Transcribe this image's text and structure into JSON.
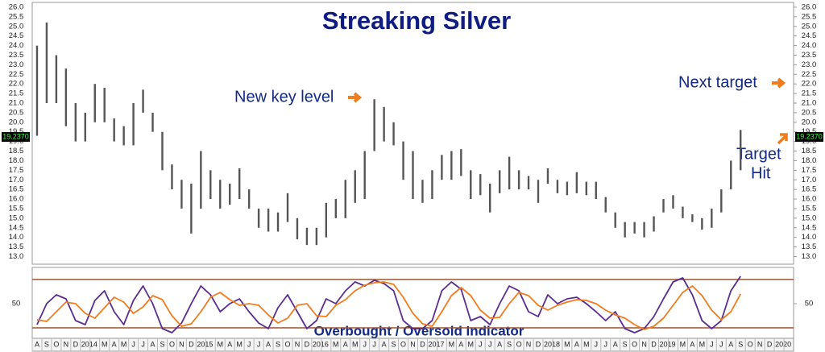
{
  "chart_data": [
    {
      "type": "ohlc",
      "title": "Streaking Silver",
      "color": "#555555",
      "annotations": [
        "New key level",
        "Next target",
        "Target",
        "Hit"
      ],
      "last_price": {
        "value": 19.237,
        "label": "19.2370"
      },
      "ylim": [
        12.6,
        26.25
      ],
      "yticks": [
        {
          "value": 13,
          "label": "13.0"
        },
        13.5,
        {
          "value": 14,
          "label": "14.0"
        },
        14.5,
        {
          "value": 15,
          "label": "15.0"
        },
        15.5,
        {
          "value": 16,
          "label": "16.0"
        },
        16.5,
        {
          "value": 17,
          "label": "17.0"
        },
        17.5,
        {
          "value": 18,
          "label": "18.0"
        },
        18.5,
        {
          "value": 19,
          "label": "19.0"
        },
        19.5,
        {
          "value": 20,
          "label": "20.0"
        },
        20.5,
        {
          "value": 21,
          "label": "21.0"
        },
        21.5,
        {
          "value": 22,
          "label": "22.0"
        },
        22.5,
        {
          "value": 23,
          "label": "23.0"
        },
        23.5,
        {
          "value": 24,
          "label": "24.0"
        },
        24.5,
        {
          "value": 25,
          "label": "25.0"
        },
        25.5,
        {
          "value": 26,
          "label": "26.0"
        }
      ],
      "high": [
        24.0,
        25.2,
        23.5,
        22.8,
        21.0,
        20.5,
        22.0,
        21.8,
        20.2,
        19.8,
        21.0,
        21.7,
        20.5,
        19.5,
        17.8,
        17.0,
        16.8,
        18.5,
        17.5,
        17.0,
        16.8,
        17.6,
        16.5,
        15.5,
        15.5,
        15.3,
        16.3,
        15.0,
        14.5,
        14.5,
        15.8,
        16.0,
        17.0,
        17.5,
        18.5,
        21.2,
        20.8,
        20.0,
        19.0,
        18.5,
        17.0,
        17.5,
        18.3,
        18.5,
        18.6,
        17.5,
        17.3,
        16.8,
        17.5,
        18.2,
        17.5,
        17.2,
        17.0,
        17.6,
        17.0,
        16.9,
        17.4,
        16.9,
        16.9,
        16.1,
        15.3,
        14.8,
        14.8,
        14.8,
        15.1,
        16.0,
        16.2,
        15.6,
        15.2,
        15.0,
        15.5,
        16.5,
        18.0,
        19.6,
        null,
        null,
        null,
        null,
        null
      ],
      "low": [
        19.3,
        21.0,
        21.0,
        19.8,
        19.0,
        19.0,
        20.0,
        20.0,
        19.0,
        18.8,
        18.8,
        20.5,
        19.5,
        17.5,
        16.5,
        15.5,
        14.2,
        15.5,
        16.0,
        15.5,
        15.7,
        16.0,
        15.5,
        14.5,
        14.3,
        14.3,
        14.8,
        13.9,
        13.6,
        13.6,
        14.0,
        15.0,
        15.0,
        15.8,
        16.0,
        18.5,
        19.0,
        18.8,
        17.0,
        16.0,
        15.8,
        16.0,
        17.0,
        17.0,
        17.2,
        16.0,
        16.2,
        15.3,
        16.3,
        16.5,
        16.5,
        16.5,
        15.8,
        16.8,
        16.3,
        16.2,
        16.3,
        16.2,
        16.0,
        15.3,
        14.5,
        14.0,
        14.2,
        14.0,
        14.3,
        15.3,
        15.5,
        15.0,
        14.8,
        14.4,
        14.5,
        15.3,
        16.5,
        17.5,
        null,
        null,
        null,
        null,
        null
      ]
    },
    {
      "type": "line",
      "title": "Overbought / Oversold Indicator",
      "categories": [
        "A",
        "S",
        "O",
        "N",
        "D",
        "2014",
        null,
        "M",
        "A",
        "M",
        "J",
        "J",
        "A",
        "S",
        "O",
        "N",
        "D",
        "2015",
        null,
        "M",
        "A",
        "M",
        "J",
        "J",
        "A",
        "S",
        "O",
        "N",
        "D",
        "2016",
        null,
        "M",
        "A",
        "M",
        "J",
        "J",
        "A",
        "S",
        "O",
        "N",
        "D",
        "2017",
        null,
        "M",
        "A",
        "M",
        "J",
        "J",
        "A",
        "S",
        "O",
        "N",
        "D",
        "2018",
        null,
        "M",
        "A",
        "M",
        "J",
        "J",
        "A",
        "S",
        "O",
        "N",
        "D",
        "2019",
        null,
        "M",
        "A",
        "M",
        "J",
        "J",
        "A",
        "S",
        "O",
        "N",
        "D",
        "2020",
        null
      ],
      "levels": [
        80,
        20
      ],
      "level_color": "#a0522d",
      "ylim": [
        7,
        95
      ],
      "yticks": [
        50
      ],
      "series": [
        {
          "color": "#5a2d91",
          "values": [
            24,
            50,
            61,
            56,
            29,
            24,
            54,
            66,
            40,
            24,
            54,
            72,
            50,
            19,
            14,
            26,
            50,
            72,
            61,
            40,
            50,
            56,
            40,
            26,
            19,
            45,
            61,
            40,
            19,
            29,
            56,
            50,
            66,
            77,
            72,
            79,
            75,
            66,
            29,
            19,
            19,
            29,
            66,
            77,
            68,
            29,
            34,
            24,
            50,
            72,
            66,
            40,
            34,
            61,
            50,
            56,
            58,
            50,
            40,
            29,
            40,
            19,
            14,
            19,
            34,
            56,
            77,
            82,
            61,
            29,
            19,
            29,
            66,
            84,
            null,
            null,
            null,
            null,
            null
          ]
        },
        {
          "color": "#f07c1e",
          "values": [
            30,
            28,
            40,
            52,
            50,
            38,
            32,
            45,
            58,
            52,
            38,
            46,
            60,
            55,
            35,
            22,
            25,
            40,
            58,
            64,
            55,
            48,
            50,
            48,
            36,
            26,
            32,
            48,
            50,
            35,
            34,
            48,
            55,
            66,
            73,
            76,
            77,
            74,
            58,
            38,
            25,
            22,
            40,
            60,
            70,
            60,
            42,
            32,
            33,
            50,
            64,
            60,
            48,
            42,
            48,
            52,
            55,
            54,
            50,
            42,
            36,
            32,
            24,
            18,
            22,
            32,
            48,
            64,
            72,
            60,
            42,
            30,
            40,
            62,
            null,
            null,
            null,
            null,
            null
          ]
        }
      ]
    }
  ]
}
